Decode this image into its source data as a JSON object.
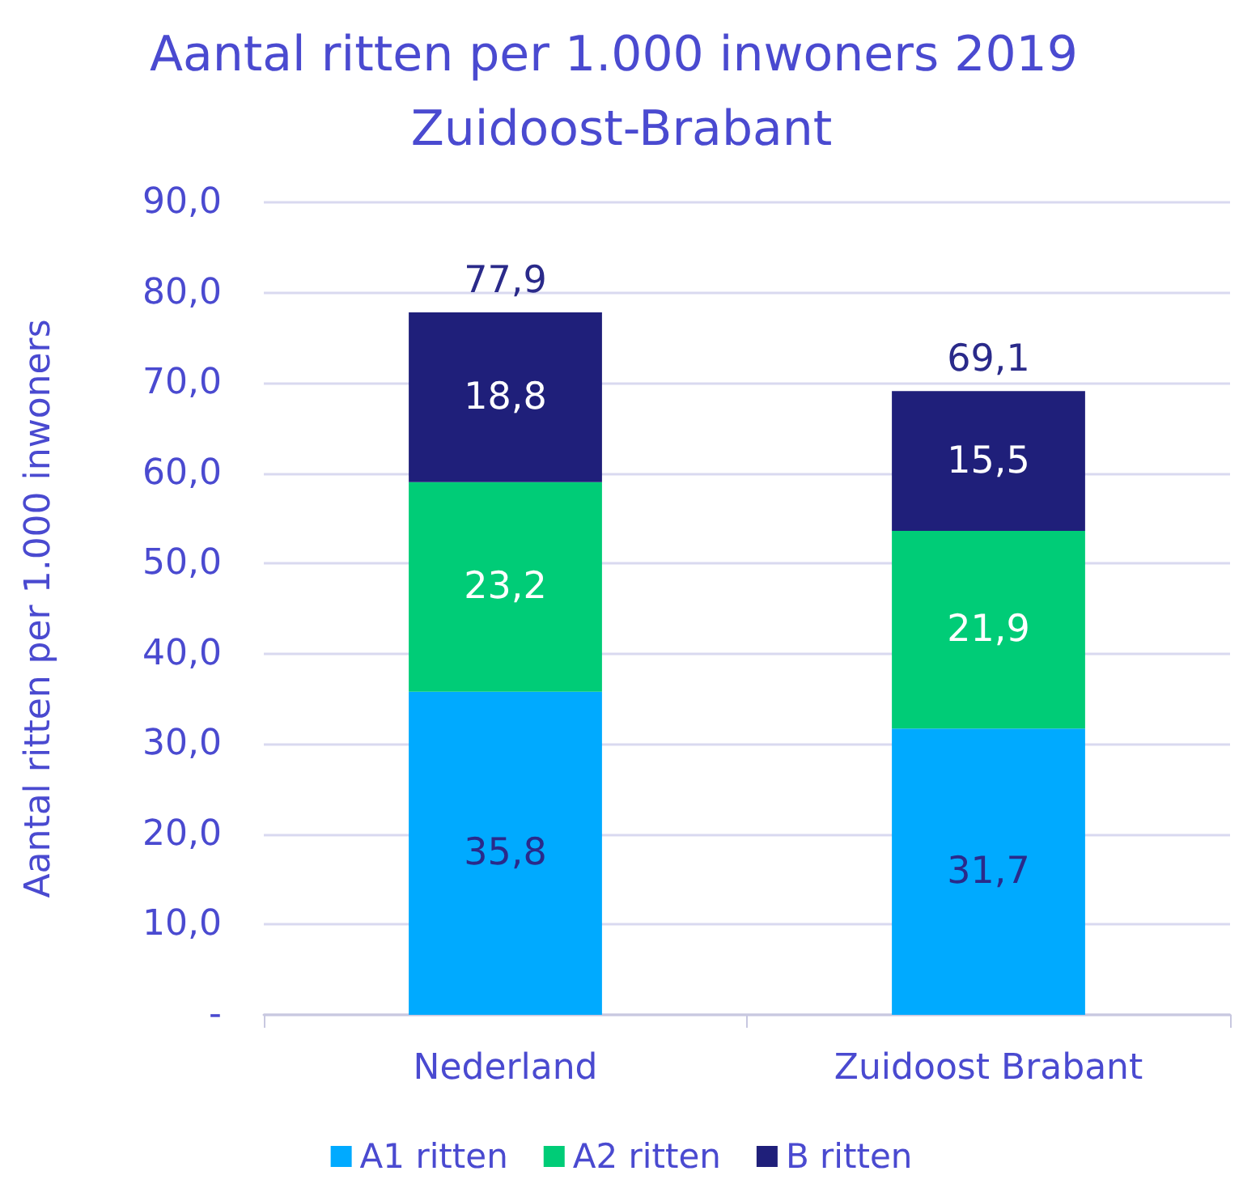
{
  "chart_data": {
    "type": "bar",
    "title": "Aantal ritten per 1.000 inwoners 2019 Zuidoost-Brabant",
    "ylabel": "Aantal ritten per 1.000 inwoners",
    "categories": [
      "Nederland",
      "Zuidoost Brabant"
    ],
    "stacked": true,
    "series": [
      {
        "name": "A1 ritten",
        "color": "#00aaff",
        "values": [
          35.8,
          31.7
        ],
        "value_labels": [
          "35,8",
          "31,7"
        ]
      },
      {
        "name": "A2 ritten",
        "color": "#00cc77",
        "values": [
          23.2,
          21.9
        ],
        "value_labels": [
          "23,2",
          "21,9"
        ]
      },
      {
        "name": "B ritten",
        "color": "#1f1f7a",
        "values": [
          18.8,
          15.5
        ],
        "value_labels": [
          "18,8",
          "15,5"
        ]
      }
    ],
    "totals": [
      "77,9",
      "69,1"
    ],
    "ylim": [
      0,
      90
    ],
    "yticks": [
      {
        "value": 0,
        "label": "-"
      },
      {
        "value": 10,
        "label": "10,0"
      },
      {
        "value": 20,
        "label": "20,0"
      },
      {
        "value": 30,
        "label": "30,0"
      },
      {
        "value": 40,
        "label": "40,0"
      },
      {
        "value": 50,
        "label": "50,0"
      },
      {
        "value": 60,
        "label": "60,0"
      },
      {
        "value": 70,
        "label": "70,0"
      },
      {
        "value": 80,
        "label": "80,0"
      },
      {
        "value": 90,
        "label": "90,0"
      }
    ],
    "grid": "y",
    "legend": "bottom"
  }
}
